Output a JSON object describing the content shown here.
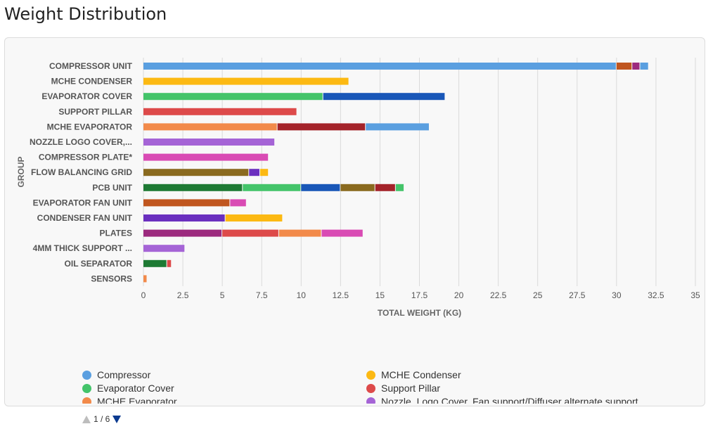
{
  "page": {
    "title": "Weight Distribution"
  },
  "legend": {
    "items": [
      {
        "label": "Compressor",
        "color": "#5a9fe0"
      },
      {
        "label": "MCHE Condenser",
        "color": "#fcb913"
      },
      {
        "label": "Evaporator Cover",
        "color": "#44c46a"
      },
      {
        "label": "Support Pillar",
        "color": "#dd4a4a"
      },
      {
        "label": "MCHE Evaporator",
        "color": "#f28a4a"
      },
      {
        "label": "Nozzle, Logo Cover, Fan support/Diffuser alternate support",
        "color": "#a564d6"
      }
    ],
    "pager": {
      "current": "1",
      "total": "6",
      "text": "1 / 6"
    }
  },
  "chart_data": {
    "type": "bar",
    "orientation": "horizontal",
    "stacked": true,
    "xlabel": "TOTAL WEIGHT (KG)",
    "ylabel": "GROUP",
    "xlim": [
      0,
      35
    ],
    "xticks": [
      "0",
      "2.5",
      "5",
      "7.5",
      "10",
      "12.5",
      "15",
      "17.5",
      "20",
      "22.5",
      "25",
      "27.5",
      "30",
      "32.5",
      "35"
    ],
    "grid": true,
    "legend_position": "bottom",
    "categories": [
      "COMPRESSOR UNIT",
      "MCHE CONDENSER",
      "EVAPORATOR COVER",
      "SUPPORT PILLAR",
      "MCHE EVAPORATOR",
      "NOZZLE LOGO COVER,...",
      "COMPRESSOR PLATE*",
      "FLOW BALANCING GRID",
      "PCB UNIT",
      "EVAPORATOR FAN UNIT",
      "CONDENSER FAN UNIT",
      "PLATES",
      "4MM THICK SUPPORT ...",
      "OIL SEPARATOR",
      "SENSORS"
    ],
    "bars": [
      [
        {
          "value": 30.0,
          "color": "#5a9fe0"
        },
        {
          "value": 1.0,
          "color": "#c0561f"
        },
        {
          "value": 0.5,
          "color": "#9c2a7e"
        },
        {
          "value": 0.5,
          "color": "#5a9fe0"
        }
      ],
      [
        {
          "value": 13.0,
          "color": "#fcb913"
        }
      ],
      [
        {
          "value": 11.4,
          "color": "#44c46a"
        },
        {
          "value": 7.7,
          "color": "#1957b8"
        }
      ],
      [
        {
          "value": 9.7,
          "color": "#dd4a4a"
        }
      ],
      [
        {
          "value": 8.5,
          "color": "#f28a4a"
        },
        {
          "value": 5.6,
          "color": "#a4232a"
        },
        {
          "value": 4.0,
          "color": "#5a9fe0"
        }
      ],
      [
        {
          "value": 8.3,
          "color": "#a564d6"
        }
      ],
      [
        {
          "value": 7.9,
          "color": "#d94bb4"
        }
      ],
      [
        {
          "value": 6.7,
          "color": "#8a6a1f"
        },
        {
          "value": 0.7,
          "color": "#6a2fbf"
        },
        {
          "value": 0.5,
          "color": "#fcb913"
        }
      ],
      [
        {
          "value": 6.3,
          "color": "#1e7a34"
        },
        {
          "value": 3.7,
          "color": "#44c46a"
        },
        {
          "value": 2.5,
          "color": "#1957b8"
        },
        {
          "value": 2.2,
          "color": "#8a6a1f"
        },
        {
          "value": 1.3,
          "color": "#a4232a"
        },
        {
          "value": 0.5,
          "color": "#44c46a"
        }
      ],
      [
        {
          "value": 5.5,
          "color": "#c0561f"
        },
        {
          "value": 1.0,
          "color": "#d94bb4"
        }
      ],
      [
        {
          "value": 5.2,
          "color": "#6a2fbf"
        },
        {
          "value": 3.6,
          "color": "#fcb913"
        }
      ],
      [
        {
          "value": 5.0,
          "color": "#9c2a7e"
        },
        {
          "value": 3.6,
          "color": "#dd4a4a"
        },
        {
          "value": 2.7,
          "color": "#f28a4a"
        },
        {
          "value": 2.6,
          "color": "#d94bb4"
        }
      ],
      [
        {
          "value": 2.6,
          "color": "#a564d6"
        }
      ],
      [
        {
          "value": 1.5,
          "color": "#1e7a34"
        },
        {
          "value": 0.25,
          "color": "#dd4a4a"
        }
      ],
      [
        {
          "value": 0.2,
          "color": "#f28a4a"
        }
      ]
    ]
  }
}
